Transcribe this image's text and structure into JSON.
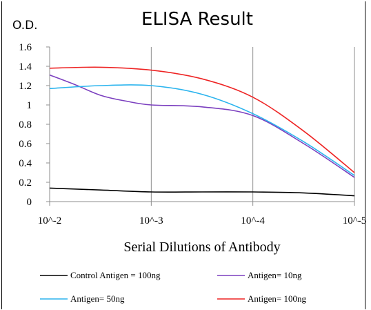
{
  "chart_data": {
    "type": "line",
    "title": "ELISA Result",
    "ylabel": "O.D.",
    "xlabel": "Serial Dilutions  of Antibody",
    "categories": [
      "10^-2",
      "10^-3",
      "10^-4",
      "10^-5"
    ],
    "x_tick_labels": [
      "10^-2",
      "10^-3",
      "10^-4",
      "10^-5"
    ],
    "y_tick_labels": [
      "0",
      "0.2",
      "0.4",
      "0.6",
      "0.8",
      "1",
      "1.2",
      "1.4",
      "1.6"
    ],
    "ylim": [
      0,
      1.6
    ],
    "grid": "vertical",
    "legend_position": "bottom",
    "series": [
      {
        "name": "Control Antigen = 100ng",
        "color": "#000000",
        "x": [
          0,
          0.5,
          1,
          1.5,
          2,
          2.5,
          3
        ],
        "values": [
          0.14,
          0.12,
          0.1,
          0.1,
          0.1,
          0.09,
          0.06
        ]
      },
      {
        "name": "Antigen= 10ng",
        "color": "#7b3fbf",
        "x": [
          0,
          0.25,
          0.5,
          0.75,
          1,
          1.5,
          2,
          2.5,
          3
        ],
        "values": [
          1.31,
          1.21,
          1.1,
          1.04,
          1.0,
          0.98,
          0.89,
          0.6,
          0.25
        ]
      },
      {
        "name": "Antigen= 50ng",
        "color": "#2bb4ee",
        "x": [
          0,
          0.5,
          1,
          1.5,
          2,
          2.5,
          3
        ],
        "values": [
          1.17,
          1.2,
          1.2,
          1.11,
          0.91,
          0.62,
          0.27
        ]
      },
      {
        "name": "Antigen= 100ng",
        "color": "#ee2424",
        "x": [
          0,
          0.5,
          1,
          1.5,
          2,
          2.5,
          3
        ],
        "values": [
          1.38,
          1.39,
          1.36,
          1.27,
          1.08,
          0.73,
          0.3
        ]
      }
    ]
  }
}
